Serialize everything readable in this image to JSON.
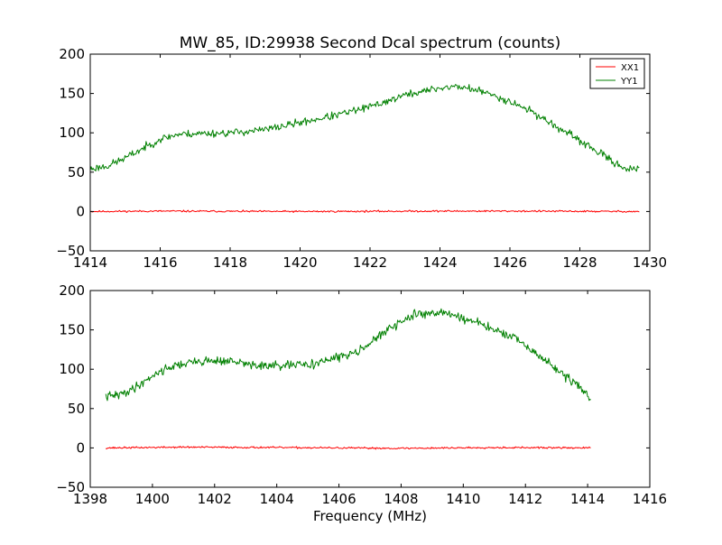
{
  "figure": {
    "title": "MW_85, ID:29938 Second Dcal spectrum (counts)"
  },
  "chart_data": [
    {
      "type": "line",
      "title": "MW_85, ID:29938 Second Dcal spectrum (counts)",
      "xlabel": "",
      "ylabel": "",
      "xlim": [
        1414,
        1430
      ],
      "ylim": [
        -50,
        200
      ],
      "xticks": [
        1414,
        1416,
        1418,
        1420,
        1422,
        1424,
        1426,
        1428,
        1430
      ],
      "yticks": [
        -50,
        0,
        50,
        100,
        150,
        200
      ],
      "xtick_labels": [
        "1414",
        "1416",
        "1418",
        "1420",
        "1422",
        "1424",
        "1426",
        "1428",
        "1430"
      ],
      "ytick_labels": [
        "−50",
        "0",
        "50",
        "100",
        "150",
        "200"
      ],
      "grid": false,
      "legend": "top-right",
      "x_range": [
        1414.0,
        1429.7
      ],
      "series": [
        {
          "name": "XX1",
          "color": "#ff0000",
          "noise": 0.7,
          "seed": 11,
          "points": [
            [
              1414.0,
              0
            ],
            [
              1416.0,
              0.5
            ],
            [
              1420.0,
              0
            ],
            [
              1424.0,
              0.5
            ],
            [
              1426.0,
              0.5
            ],
            [
              1429.7,
              0
            ]
          ]
        },
        {
          "name": "YY1",
          "color": "#008000",
          "noise": 3.0,
          "seed": 23,
          "points": [
            [
              1414.0,
              54
            ],
            [
              1414.5,
              58
            ],
            [
              1415.0,
              68
            ],
            [
              1415.5,
              80
            ],
            [
              1416.0,
              92
            ],
            [
              1416.5,
              98
            ],
            [
              1417.0,
              99
            ],
            [
              1418.0,
              100
            ],
            [
              1419.0,
              104
            ],
            [
              1420.0,
              113
            ],
            [
              1421.0,
              122
            ],
            [
              1422.0,
              133
            ],
            [
              1423.0,
              148
            ],
            [
              1424.0,
              157
            ],
            [
              1424.5,
              159
            ],
            [
              1425.0,
              155
            ],
            [
              1425.5,
              148
            ],
            [
              1426.0,
              140
            ],
            [
              1426.5,
              130
            ],
            [
              1427.0,
              117
            ],
            [
              1427.5,
              103
            ],
            [
              1428.0,
              90
            ],
            [
              1428.5,
              76
            ],
            [
              1429.0,
              62
            ],
            [
              1429.3,
              55
            ],
            [
              1429.7,
              53
            ]
          ]
        }
      ]
    },
    {
      "type": "line",
      "title": "",
      "xlabel": "Frequency (MHz)",
      "ylabel": "",
      "xlim": [
        1398,
        1416
      ],
      "ylim": [
        -50,
        200
      ],
      "xticks": [
        1398,
        1400,
        1402,
        1404,
        1406,
        1408,
        1410,
        1412,
        1414,
        1416
      ],
      "yticks": [
        -50,
        0,
        50,
        100,
        150,
        200
      ],
      "xtick_labels": [
        "1398",
        "1400",
        "1402",
        "1404",
        "1406",
        "1408",
        "1410",
        "1412",
        "1414",
        "1416"
      ],
      "ytick_labels": [
        "−50",
        "0",
        "50",
        "100",
        "150",
        "200"
      ],
      "grid": false,
      "legend": "none",
      "x_range": [
        1398.5,
        1414.1
      ],
      "series": [
        {
          "name": "XX1",
          "color": "#ff0000",
          "noise": 0.7,
          "seed": 37,
          "points": [
            [
              1398.5,
              0
            ],
            [
              1401.0,
              1
            ],
            [
              1404.0,
              0.5
            ],
            [
              1408.0,
              -0.5
            ],
            [
              1411.0,
              0.5
            ],
            [
              1414.1,
              0
            ]
          ]
        },
        {
          "name": "YY1",
          "color": "#008000",
          "noise": 3.5,
          "seed": 41,
          "points": [
            [
              1398.5,
              65
            ],
            [
              1399.0,
              68
            ],
            [
              1399.5,
              78
            ],
            [
              1400.0,
              92
            ],
            [
              1400.5,
              102
            ],
            [
              1401.0,
              107
            ],
            [
              1401.5,
              110
            ],
            [
              1402.0,
              111
            ],
            [
              1402.5,
              110
            ],
            [
              1403.0,
              107
            ],
            [
              1403.5,
              104
            ],
            [
              1404.0,
              104
            ],
            [
              1404.5,
              105
            ],
            [
              1405.0,
              106
            ],
            [
              1405.5,
              110
            ],
            [
              1406.0,
              115
            ],
            [
              1406.5,
              122
            ],
            [
              1407.0,
              133
            ],
            [
              1407.5,
              148
            ],
            [
              1408.0,
              160
            ],
            [
              1408.5,
              170
            ],
            [
              1409.0,
              172
            ],
            [
              1409.5,
              171
            ],
            [
              1410.0,
              165
            ],
            [
              1410.5,
              158
            ],
            [
              1411.0,
              150
            ],
            [
              1411.5,
              142
            ],
            [
              1412.0,
              130
            ],
            [
              1412.5,
              115
            ],
            [
              1413.0,
              100
            ],
            [
              1413.5,
              85
            ],
            [
              1414.1,
              64
            ]
          ]
        }
      ]
    }
  ]
}
